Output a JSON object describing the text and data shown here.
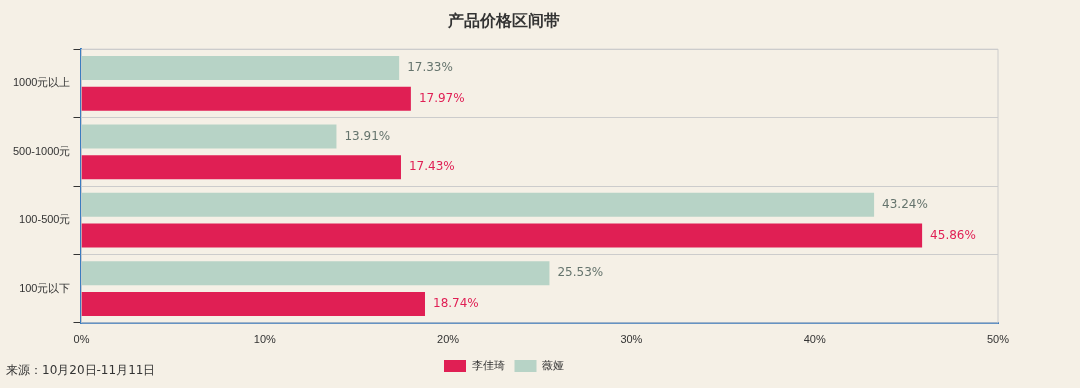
{
  "chart_data": {
    "type": "bar",
    "orientation": "horizontal",
    "title": "产品价格区间带",
    "categories": [
      "1000元以上",
      "500-1000元",
      "100-500元",
      "100元以下"
    ],
    "series": [
      {
        "name": "薇娅",
        "color": "#b7d3c6",
        "values": [
          17.33,
          13.91,
          43.24,
          25.53
        ],
        "value_labels": [
          "17.33%",
          "13.91%",
          "43.24%",
          "25.53%"
        ]
      },
      {
        "name": "李佳琦",
        "color": "#e01f54",
        "values": [
          17.97,
          17.43,
          45.86,
          18.74
        ],
        "value_labels": [
          "17.97%",
          "17.43%",
          "45.86%",
          "18.74%"
        ]
      }
    ],
    "xlim": [
      0,
      50
    ],
    "xticks": [
      {
        "value": 0,
        "label": "0%"
      },
      {
        "value": 10,
        "label": "10%"
      },
      {
        "value": 20,
        "label": "20%"
      },
      {
        "value": 30,
        "label": "30%"
      },
      {
        "value": 40,
        "label": "40%"
      },
      {
        "value": 50,
        "label": "50%"
      }
    ],
    "grid": "y",
    "legend": "bottom",
    "annotations": [
      "来源：10月20日-11月11日"
    ]
  }
}
